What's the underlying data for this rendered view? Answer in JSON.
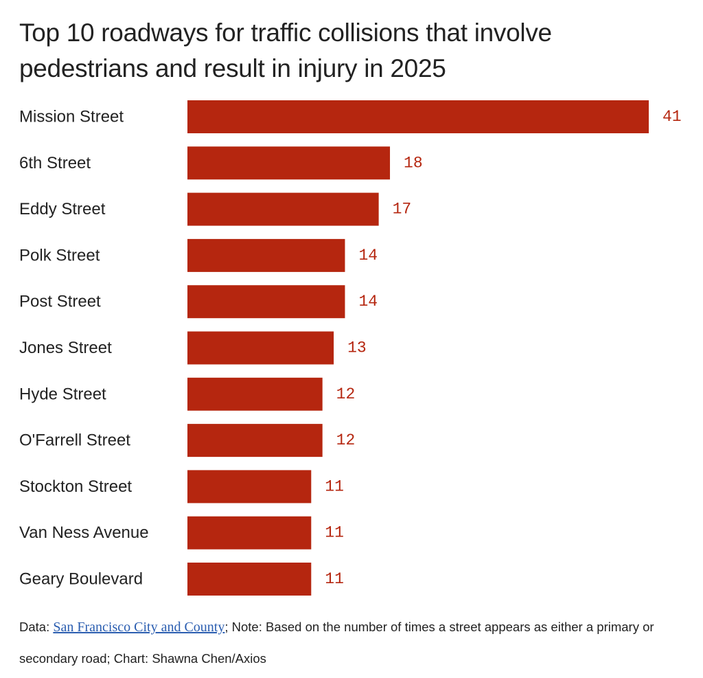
{
  "title": {
    "line1": "Top 10 roadways for traffic collisions that involve",
    "line2": "pedestrians and result in injury in 2025"
  },
  "colors": {
    "bar": "#b5260f",
    "value_text": "#b5260f",
    "label_text": "#222222",
    "link": "#2a5db0"
  },
  "chart_data": {
    "type": "bar",
    "orientation": "horizontal",
    "title": "Top 10 roadways for traffic collisions that involve pedestrians and result in injury in 2025",
    "categories": [
      "Mission Street",
      "6th Street",
      "Eddy Street",
      "Polk Street",
      "Post Street",
      "Jones Street",
      "Hyde Street",
      "O'Farrell Street",
      "Stockton Street",
      "Van Ness Avenue",
      "Geary Boulevard"
    ],
    "values": [
      41,
      18,
      17,
      14,
      14,
      13,
      12,
      12,
      11,
      11,
      11
    ],
    "xlabel": "",
    "ylabel": "",
    "xlim": [
      0,
      41
    ],
    "grid": false,
    "data_labels": true
  },
  "footer": {
    "data_prefix": "Data: ",
    "source_link_text": "San Francisco City and County",
    "note_text": "; Note: Based on the number of times a street appears as either a primary or secondary road; Chart: Shawna Chen/Axios"
  }
}
